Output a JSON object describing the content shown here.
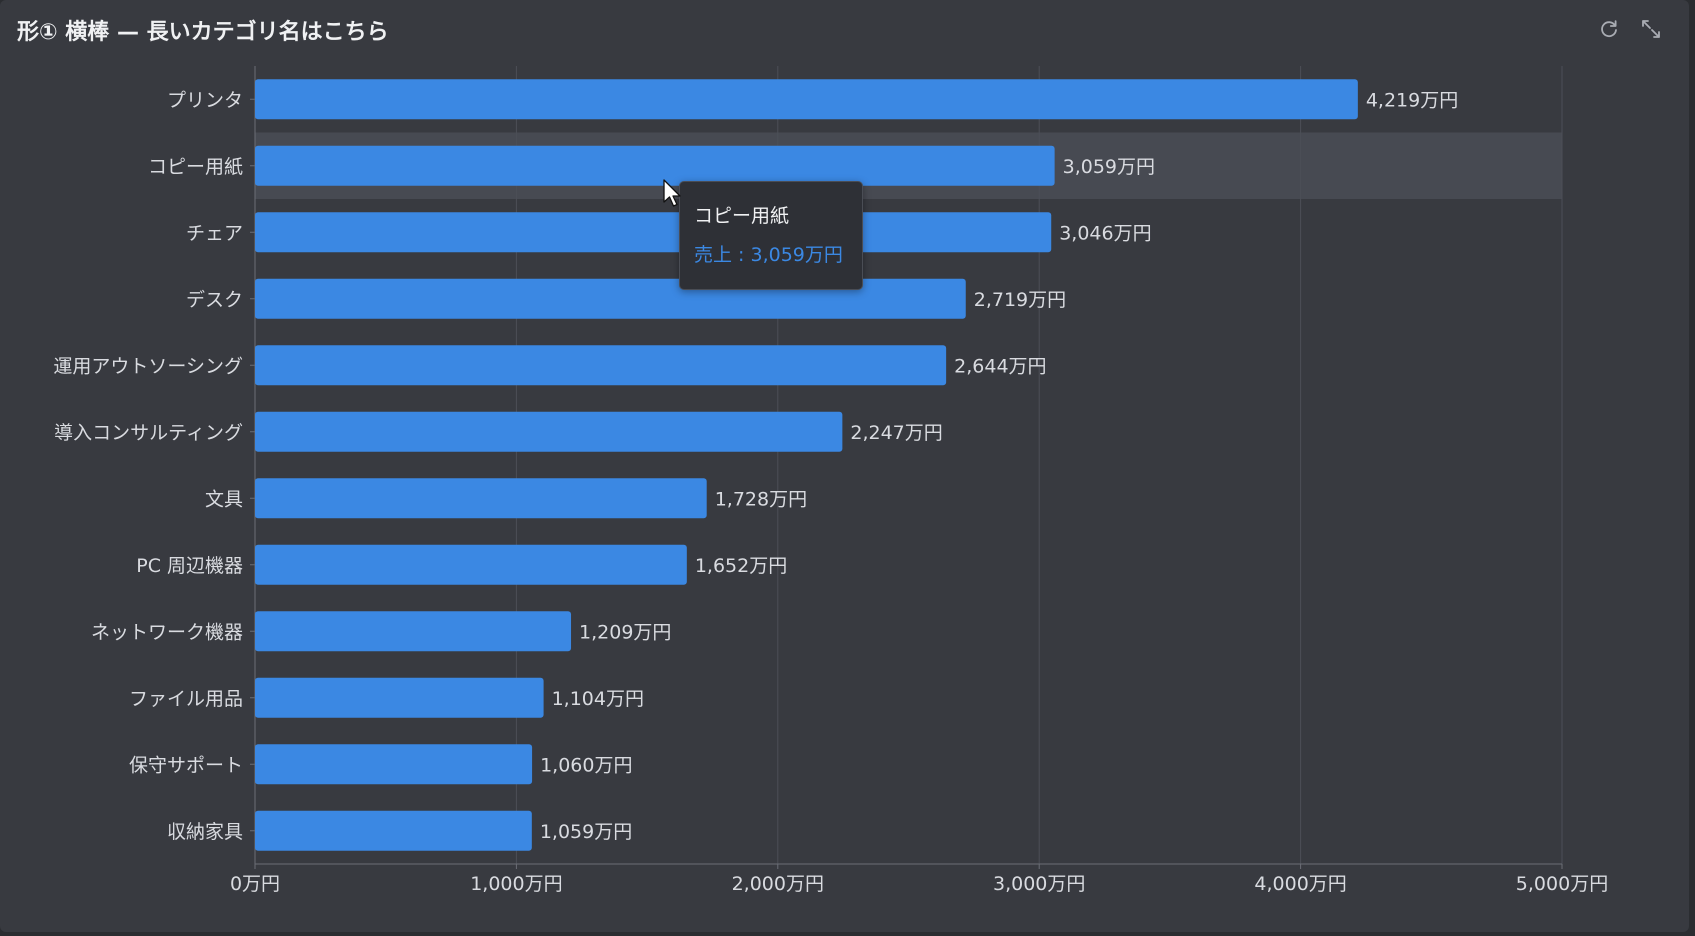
{
  "title": "形① 横棒 — 長いカテゴリ名はこちら",
  "toolbar": {
    "refresh_icon": "refresh-icon",
    "fullscreen_icon": "expand-icon"
  },
  "tooltip": {
    "category": "コピー用紙",
    "value_text": "売上 : 3,059万円"
  },
  "colors": {
    "bar": "#3b88e3",
    "highlight_band": "#474a52",
    "grid": "#4c4f57",
    "label": "#d9dbe0"
  },
  "chart_data": {
    "type": "bar",
    "orientation": "horizontal",
    "categories": [
      "プリンタ",
      "コピー用紙",
      "チェア",
      "デスク",
      "運用アウトソーシング",
      "導入コンサルティング",
      "文具",
      "PC 周辺機器",
      "ネットワーク機器",
      "ファイル用品",
      "保守サポート",
      "収納家具"
    ],
    "series": [
      {
        "name": "売上",
        "values": [
          4219,
          3059,
          3046,
          2719,
          2644,
          2247,
          1728,
          1652,
          1209,
          1104,
          1060,
          1059
        ],
        "labels": [
          "4,219万円",
          "3,059万円",
          "3,046万円",
          "2,719万円",
          "2,644万円",
          "2,247万円",
          "1,728万円",
          "1,652万円",
          "1,209万円",
          "1,104万円",
          "1,060万円",
          "1,059万円"
        ]
      }
    ],
    "xlim": [
      0,
      5000
    ],
    "xticks": [
      0,
      1000,
      2000,
      3000,
      4000,
      5000
    ],
    "xtick_labels": [
      "0万円",
      "1,000万円",
      "2,000万円",
      "3,000万円",
      "4,000万円",
      "5,000万円"
    ],
    "highlighted_category": "コピー用紙",
    "grid": true
  }
}
